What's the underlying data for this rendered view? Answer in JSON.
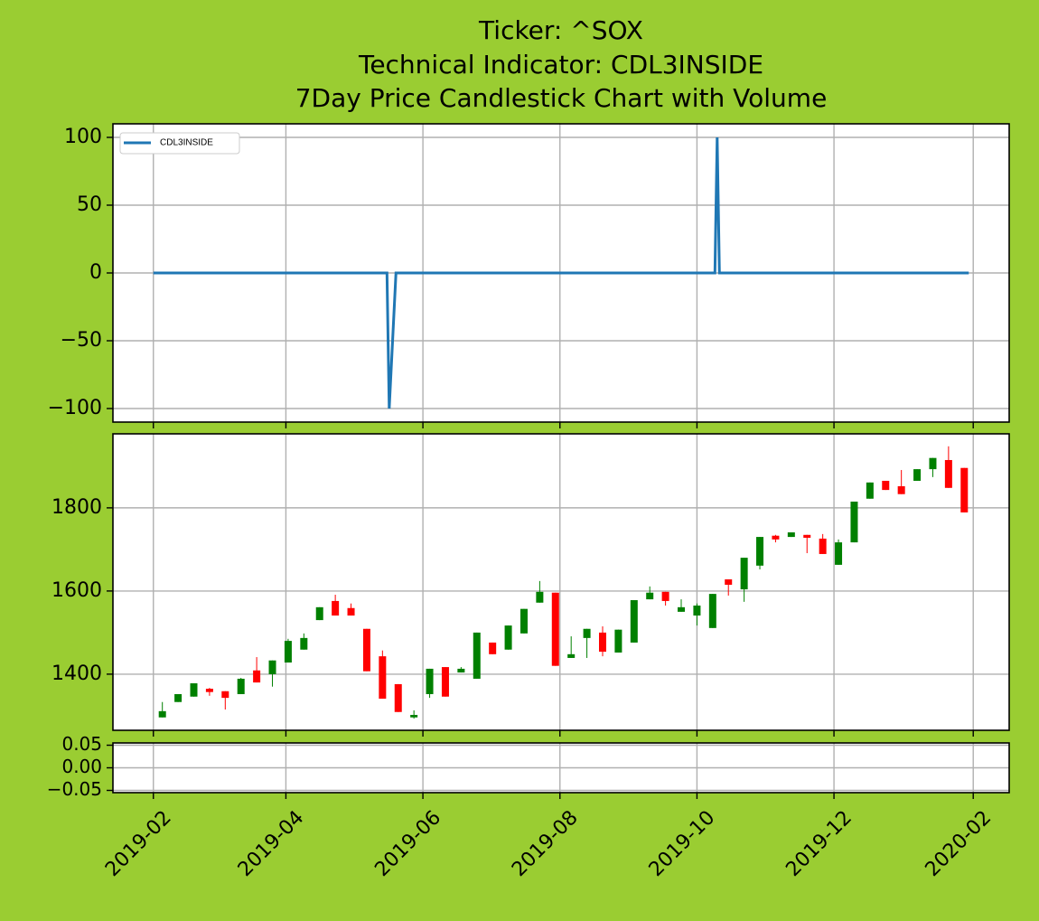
{
  "title": [
    "Ticker: ^SOX",
    "Technical Indicator: CDL3INSIDE",
    "7Day Price Candlestick Chart with Volume"
  ],
  "chart_data": [
    {
      "type": "line",
      "xlim": [
        "2019-01-14",
        "2020-02-17"
      ],
      "ylim": [
        -110,
        110
      ],
      "yticks": [
        {
          "value": -100,
          "label": "−100"
        },
        {
          "value": -50,
          "label": "−50"
        },
        0,
        50,
        100
      ],
      "grid": true,
      "legend": "upper left",
      "series": [
        {
          "name": "CDL3INSIDE",
          "color": "#1f77b4",
          "x": [
            "2019-02-01",
            "2019-05-16",
            "2019-05-17",
            "2019-05-20",
            "2019-10-09",
            "2019-10-10",
            "2019-10-11",
            "2020-01-30"
          ],
          "values": [
            0,
            0,
            -100,
            0,
            0,
            100,
            0,
            0
          ]
        }
      ]
    },
    {
      "type": "candlestick",
      "xlim": [
        "2019-01-14",
        "2020-02-17"
      ],
      "ylim": [
        1265,
        1978
      ],
      "yticks": [
        1400,
        1600,
        1800
      ],
      "grid": true,
      "up_color": "green",
      "down_color": "red",
      "x": [
        "2019-02-05",
        "2019-02-12",
        "2019-02-19",
        "2019-02-26",
        "2019-03-05",
        "2019-03-12",
        "2019-03-19",
        "2019-03-26",
        "2019-04-02",
        "2019-04-09",
        "2019-04-16",
        "2019-04-23",
        "2019-04-30",
        "2019-05-07",
        "2019-05-14",
        "2019-05-21",
        "2019-05-28",
        "2019-06-04",
        "2019-06-11",
        "2019-06-18",
        "2019-06-25",
        "2019-07-02",
        "2019-07-09",
        "2019-07-16",
        "2019-07-23",
        "2019-07-30",
        "2019-08-06",
        "2019-08-13",
        "2019-08-20",
        "2019-08-27",
        "2019-09-03",
        "2019-09-10",
        "2019-09-17",
        "2019-09-24",
        "2019-10-01",
        "2019-10-08",
        "2019-10-15",
        "2019-10-22",
        "2019-10-29",
        "2019-11-05",
        "2019-11-12",
        "2019-11-19",
        "2019-11-26",
        "2019-12-03",
        "2019-12-10",
        "2019-12-17",
        "2019-12-24",
        "2019-12-31",
        "2020-01-07",
        "2020-01-14",
        "2020-01-21",
        "2020-01-28"
      ],
      "open": [
        1296,
        1333,
        1346,
        1365,
        1359,
        1352,
        1409,
        1400,
        1428,
        1459,
        1530,
        1576,
        1559,
        1509,
        1443,
        1376,
        1296,
        1352,
        1417,
        1404,
        1389,
        1476,
        1459,
        1498,
        1572,
        1596,
        1439,
        1487,
        1500,
        1452,
        1476,
        1580,
        1598,
        1550,
        1541,
        1511,
        1628,
        1604,
        1661,
        1733,
        1730,
        1735,
        1726,
        1663,
        1717,
        1822,
        1865,
        1852,
        1865,
        1893,
        1915,
        1896
      ],
      "high": [
        1333,
        1352,
        1378,
        1367,
        1359,
        1391,
        1441,
        1433,
        1485,
        1498,
        1561,
        1591,
        1570,
        1509,
        1457,
        1376,
        1313,
        1413,
        1417,
        1417,
        1500,
        1476,
        1517,
        1557,
        1624,
        1596,
        1491,
        1509,
        1515,
        1507,
        1578,
        1611,
        1598,
        1580,
        1570,
        1593,
        1628,
        1680,
        1730,
        1735,
        1741,
        1735,
        1737,
        1724,
        1815,
        1861,
        1865,
        1891,
        1893,
        1920,
        1948,
        1896
      ],
      "low": [
        1296,
        1333,
        1346,
        1348,
        1315,
        1352,
        1380,
        1370,
        1428,
        1459,
        1530,
        1541,
        1541,
        1407,
        1341,
        1309,
        1293,
        1343,
        1346,
        1404,
        1389,
        1448,
        1459,
        1498,
        1572,
        1420,
        1439,
        1439,
        1443,
        1452,
        1476,
        1580,
        1565,
        1550,
        1517,
        1511,
        1589,
        1574,
        1652,
        1717,
        1730,
        1691,
        1689,
        1663,
        1717,
        1822,
        1843,
        1833,
        1865,
        1874,
        1848,
        1789
      ],
      "close": [
        1311,
        1352,
        1378,
        1357,
        1343,
        1389,
        1380,
        1433,
        1480,
        1487,
        1561,
        1541,
        1541,
        1407,
        1341,
        1309,
        1302,
        1413,
        1346,
        1413,
        1500,
        1448,
        1517,
        1557,
        1598,
        1420,
        1448,
        1509,
        1454,
        1507,
        1578,
        1596,
        1576,
        1561,
        1565,
        1593,
        1615,
        1680,
        1730,
        1724,
        1741,
        1728,
        1689,
        1717,
        1815,
        1861,
        1843,
        1833,
        1893,
        1920,
        1848,
        1789
      ]
    },
    {
      "type": "volume",
      "xlim": [
        "2019-01-14",
        "2020-02-17"
      ],
      "ylim": [
        -0.055,
        0.055
      ],
      "yticks": [
        {
          "value": -0.05,
          "label": "−0.05"
        },
        {
          "value": 0,
          "label": "0.00"
        },
        {
          "value": 0.05,
          "label": "0.05"
        }
      ],
      "xticks": [
        {
          "value": "2019-02-01",
          "label": "2019-02"
        },
        {
          "value": "2019-04-01",
          "label": "2019-04"
        },
        {
          "value": "2019-06-01",
          "label": "2019-06"
        },
        {
          "value": "2019-08-01",
          "label": "2019-08"
        },
        {
          "value": "2019-10-01",
          "label": "2019-10"
        },
        {
          "value": "2019-12-01",
          "label": "2019-12"
        },
        {
          "value": "2020-02-01",
          "label": "2020-02"
        }
      ],
      "grid": true
    }
  ]
}
